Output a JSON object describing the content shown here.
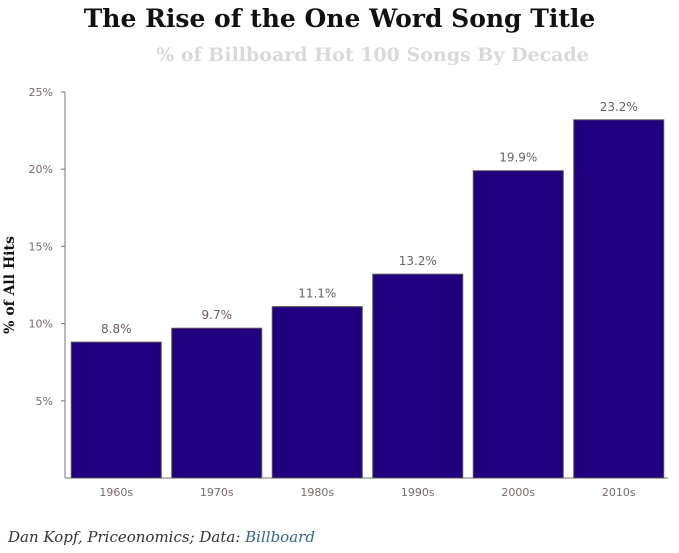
{
  "chart_data": {
    "type": "bar",
    "title": "The Rise of the One Word Song Title",
    "subtitle": "% of Billboard Hot 100 Songs By Decade",
    "ylabel": "% of All Hits",
    "xlabel": "",
    "categories": [
      "1960s",
      "1970s",
      "1980s",
      "1990s",
      "2000s",
      "2010s"
    ],
    "values": [
      8.8,
      9.7,
      11.1,
      13.2,
      19.9,
      23.2
    ],
    "value_labels": [
      "8.8%",
      "9.7%",
      "11.1%",
      "13.2%",
      "19.9%",
      "23.2%"
    ],
    "yticks": [
      5,
      10,
      15,
      20,
      25
    ],
    "ytick_labels": [
      "5%",
      "10%",
      "15%",
      "20%",
      "25%"
    ],
    "ylim": [
      0,
      25
    ],
    "bar_color": "#20007f",
    "grid": false
  },
  "footer": {
    "credit": "Dan Kopf, Priceonomics; Data: ",
    "source_link": "Billboard"
  }
}
